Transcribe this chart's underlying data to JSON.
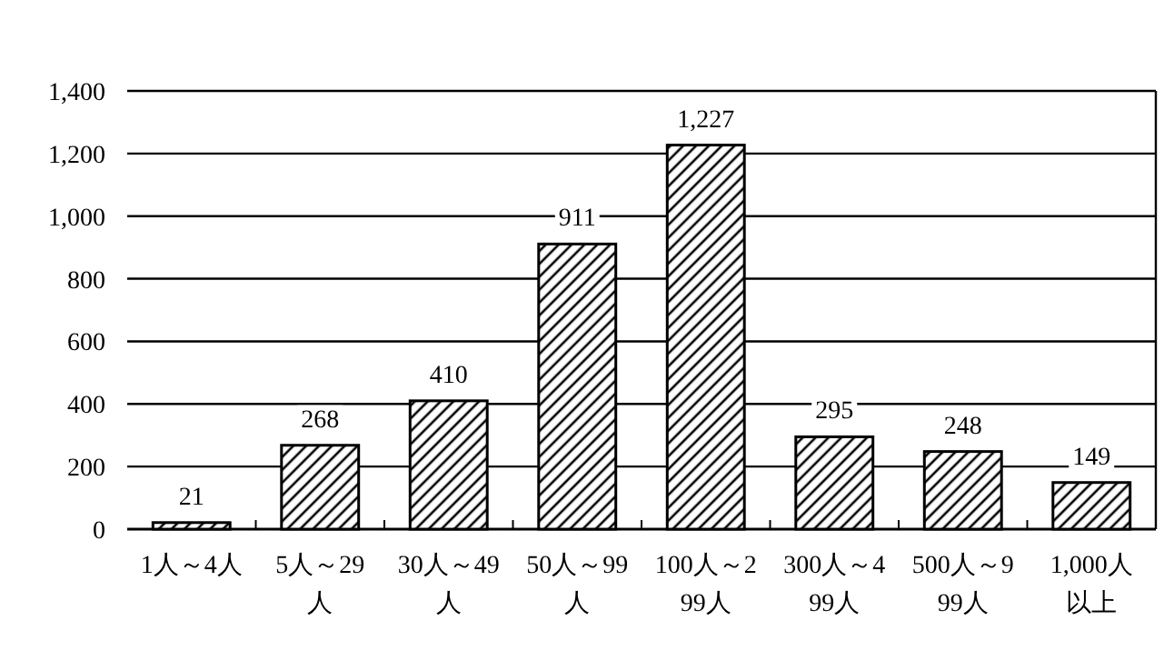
{
  "chart_data": {
    "type": "bar",
    "categories": [
      "1人～4人",
      "5人～29人",
      "30人～49人",
      "50人～99人",
      "100人～299人",
      "300人～499人",
      "500人～999人",
      "1,000人以上"
    ],
    "series": [
      {
        "color": "#ffffff",
        "values": [
          21,
          268,
          410,
          911,
          1227,
          295,
          248,
          149
        ]
      }
    ],
    "value_labels": [
      "21",
      "268",
      "410",
      "911",
      "1,227",
      "295",
      "248",
      "149"
    ],
    "ylim": [
      0,
      1400
    ],
    "yticks": [
      0,
      200,
      400,
      600,
      800,
      {
        "value": 1000,
        "label": "1,000"
      },
      {
        "value": 1200,
        "label": "1,200"
      },
      {
        "value": 1400,
        "label": "1,400"
      }
    ],
    "grid": "y"
  }
}
